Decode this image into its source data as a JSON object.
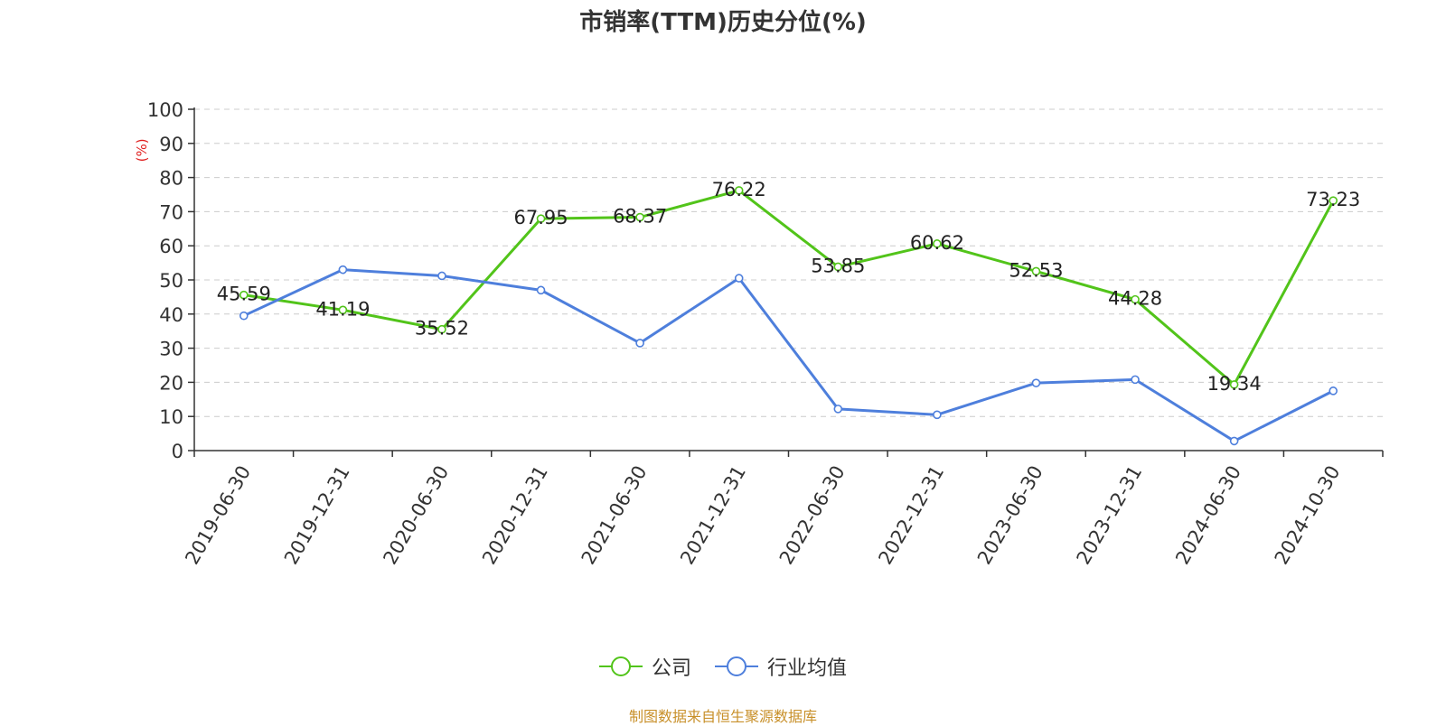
{
  "chart_data": {
    "type": "line",
    "title": "市销率(TTM)历史分位(%)",
    "ylabel": "(%)",
    "ylim": [
      0,
      100
    ],
    "yticks": [
      0,
      10,
      20,
      30,
      40,
      50,
      60,
      70,
      80,
      90,
      100
    ],
    "grid": true,
    "legend_position": "bottom",
    "categories": [
      "2019-06-30",
      "2019-12-31",
      "2020-06-30",
      "2020-12-31",
      "2021-06-30",
      "2021-12-31",
      "2022-06-30",
      "2022-12-31",
      "2023-06-30",
      "2023-12-31",
      "2024-06-30",
      "2024-10-30"
    ],
    "series": [
      {
        "name": "公司",
        "color": "#52c41a",
        "show_labels": true,
        "values": [
          45.59,
          41.19,
          35.52,
          67.95,
          68.37,
          76.22,
          53.85,
          60.62,
          52.53,
          44.28,
          19.34,
          73.23
        ]
      },
      {
        "name": "行业均值",
        "color": "#4e7fdc",
        "show_labels": false,
        "values": [
          39.5,
          53.0,
          51.2,
          47.0,
          31.5,
          50.5,
          12.2,
          10.5,
          19.8,
          20.8,
          2.8,
          17.5
        ]
      }
    ]
  },
  "source": "制图数据来自恒生聚源数据库"
}
